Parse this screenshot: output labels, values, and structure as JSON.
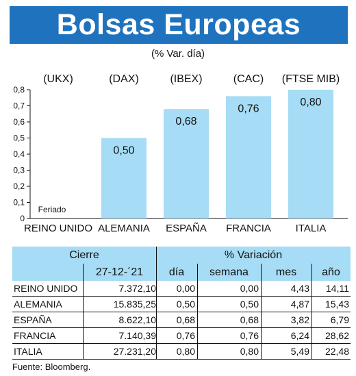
{
  "title": "Bolsas Europeas",
  "subtitle": "(% Var. día)",
  "chart_data": {
    "type": "bar",
    "categories": [
      "REINO UNIDO",
      "ALEMANIA",
      "ESPAÑA",
      "FRANCIA",
      "ITALIA"
    ],
    "tickers": [
      "(UKX)",
      "(DAX)",
      "(IBEX)",
      "(CAC)",
      "(FTSE MIB)"
    ],
    "values": [
      null,
      0.5,
      0.68,
      0.76,
      0.8
    ],
    "data_labels": [
      "Feriado",
      "0,50",
      "0,68",
      "0,76",
      "0,80"
    ],
    "ylim": [
      0,
      0.8
    ],
    "yticks": [
      "0",
      "0,1",
      "0,2",
      "0,3",
      "0,4",
      "0,5",
      "0,6",
      "0,7",
      "0,8"
    ],
    "bar_color": "#a6dcf5",
    "grid": false
  },
  "table": {
    "header_cierre": "Cierre",
    "header_variacion": "% Variación",
    "header_date": "27-12-´21",
    "header_dia": "día",
    "header_semana": "semana",
    "header_mes": "mes",
    "header_ano": "año",
    "rows": [
      {
        "name": "REINO UNIDO",
        "cierre": "7.372,10",
        "dia": "0,00",
        "semana": "0,00",
        "mes": "4,43",
        "ano": "14,11"
      },
      {
        "name": "ALEMANIA",
        "cierre": "15.835,25",
        "dia": "0,50",
        "semana": "0,50",
        "mes": "4,87",
        "ano": "15,43"
      },
      {
        "name": "ESPAÑA",
        "cierre": "8.622,10",
        "dia": "0,68",
        "semana": "0,68",
        "mes": "3,82",
        "ano": "6,79"
      },
      {
        "name": "FRANCIA",
        "cierre": "7.140,39",
        "dia": "0,76",
        "semana": "0,76",
        "mes": "6,24",
        "ano": "28,62"
      },
      {
        "name": "ITALIA",
        "cierre": "27.231,20",
        "dia": "0,80",
        "semana": "0,80",
        "mes": "5,49",
        "ano": "22,48"
      }
    ]
  },
  "source": "Fuente: Bloomberg.",
  "colors": {
    "banner": "#1f73be",
    "accent_light": "#a6dcf5"
  }
}
